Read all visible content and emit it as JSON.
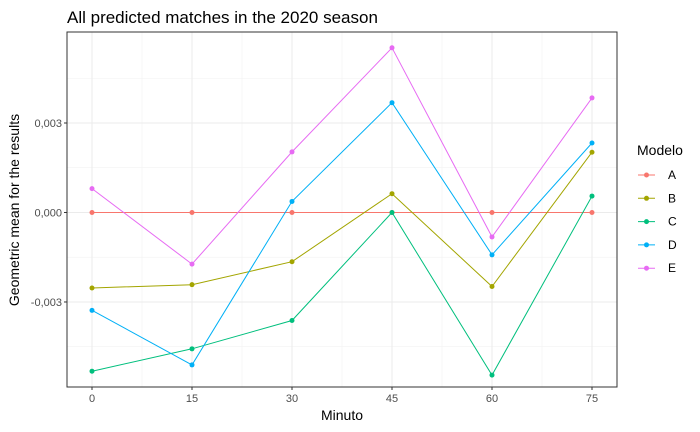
{
  "chart_data": {
    "type": "line",
    "title": "All predicted matches in the 2020 season",
    "xlabel": "Minuto",
    "ylabel": "Geometric mean for the results",
    "x": [
      0,
      15,
      30,
      45,
      60,
      75
    ],
    "x_tick_labels": [
      "0",
      "15",
      "30",
      "45",
      "60",
      "75"
    ],
    "y_tick_labels": [
      "-0,003",
      "0,000",
      "0,003"
    ],
    "y_ticks": [
      -0.003,
      0.0,
      0.003
    ],
    "xlim": [
      -3.75,
      78.75
    ],
    "ylim": [
      -0.00585,
      0.00605
    ],
    "grid": true,
    "legend": {
      "title": "Modelo",
      "position": "right"
    },
    "series": [
      {
        "name": "A",
        "color": "#F8766D",
        "values": [
          0.0,
          0.0,
          0.0,
          0.0,
          0.0,
          0.0
        ]
      },
      {
        "name": "B",
        "color": "#A3A500",
        "values": [
          -0.00253,
          -0.00242,
          -0.00165,
          0.00063,
          -0.00248,
          0.00202
        ]
      },
      {
        "name": "C",
        "color": "#00BF7D",
        "values": [
          -0.00532,
          -0.00457,
          -0.00362,
          0.0,
          -0.00545,
          0.00055
        ]
      },
      {
        "name": "D",
        "color": "#00B0F6",
        "values": [
          -0.00328,
          -0.00511,
          0.00037,
          0.00368,
          -0.00142,
          0.00233
        ]
      },
      {
        "name": "E",
        "color": "#E76BF3",
        "values": [
          0.0008,
          -0.00173,
          0.00203,
          0.00552,
          -0.00082,
          0.00384
        ]
      }
    ]
  }
}
